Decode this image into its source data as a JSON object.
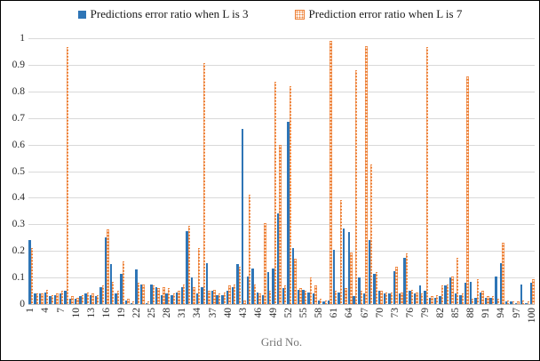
{
  "legend": {
    "position": "top",
    "items": [
      {
        "label": "Predictions error ratio when L is 3",
        "series": "l3"
      },
      {
        "label": "Prediction error ratio when L is 7",
        "series": "l7"
      }
    ]
  },
  "colors": {
    "l3_blue": "#2E75B6",
    "l7_orange": "#ED7D31",
    "gridline": "#D9D9D9",
    "axis_line": "#BFBFBF",
    "tick_text": "#262626",
    "axis_title_text": "#757575"
  },
  "axis": {
    "x_title": "Grid No.",
    "y_ticks": [
      "1",
      "0.9",
      "0.8",
      "0.7",
      "0.6",
      "0.5",
      "0.4",
      "0.3",
      "0.2",
      "0.1",
      "0"
    ],
    "x_tick_labels": [
      "1",
      "4",
      "7",
      "10",
      "13",
      "16",
      "19",
      "22",
      "25",
      "28",
      "31",
      "34",
      "37",
      "40",
      "43",
      "46",
      "49",
      "52",
      "55",
      "58",
      "61",
      "64",
      "67",
      "70",
      "73",
      "76",
      "79",
      "82",
      "85",
      "88",
      "91",
      "94",
      "97",
      "100"
    ],
    "x_tick_step": 3
  },
  "chart_data": {
    "type": "bar",
    "title": "",
    "xlabel": "Grid No.",
    "ylabel": "",
    "ylim": [
      0,
      1
    ],
    "grid": true,
    "legend_position": "top",
    "categories": [
      1,
      2,
      3,
      4,
      5,
      6,
      7,
      8,
      9,
      10,
      11,
      12,
      13,
      14,
      15,
      16,
      17,
      18,
      19,
      20,
      21,
      22,
      23,
      24,
      25,
      26,
      27,
      28,
      29,
      30,
      31,
      32,
      33,
      34,
      35,
      36,
      37,
      38,
      39,
      40,
      41,
      42,
      43,
      44,
      45,
      46,
      47,
      48,
      49,
      50,
      51,
      52,
      53,
      54,
      55,
      56,
      57,
      58,
      59,
      60,
      61,
      62,
      63,
      64,
      65,
      66,
      67,
      68,
      69,
      70,
      71,
      72,
      73,
      74,
      75,
      76,
      77,
      78,
      79,
      80,
      81,
      82,
      83,
      84,
      85,
      86,
      87,
      88,
      89,
      90,
      91,
      92,
      93,
      94,
      95,
      96,
      97,
      98,
      99,
      100
    ],
    "series": [
      {
        "name": "Predictions error ratio when L is 3",
        "color": "#2E75B6",
        "pattern": "solid",
        "values": [
          0.24,
          0.04,
          0.04,
          0.045,
          0.03,
          0.035,
          0.04,
          0.05,
          0.02,
          0.02,
          0.03,
          0.04,
          0.035,
          0.03,
          0.065,
          0.25,
          0.15,
          0.04,
          0.115,
          0.015,
          0.005,
          0.13,
          0.075,
          0.005,
          0.075,
          0.065,
          0.035,
          0.04,
          0.035,
          0.045,
          0.065,
          0.275,
          0.1,
          0.04,
          0.065,
          0.155,
          0.05,
          0.035,
          0.035,
          0.05,
          0.065,
          0.15,
          0.66,
          0.105,
          0.135,
          0.045,
          0.035,
          0.12,
          0.135,
          0.34,
          0.06,
          0.685,
          0.21,
          0.055,
          0.055,
          0.045,
          0.04,
          0.015,
          0.01,
          0.015,
          0.205,
          0.045,
          0.285,
          0.27,
          0.03,
          0.1,
          0.04,
          0.24,
          0.115,
          0.05,
          0.04,
          0.04,
          0.125,
          0.04,
          0.175,
          0.05,
          0.04,
          0.07,
          0.05,
          0.025,
          0.025,
          0.03,
          0.07,
          0.1,
          0.04,
          0.035,
          0.08,
          0.085,
          0.025,
          0.045,
          0.025,
          0.025,
          0.105,
          0.155,
          0.01,
          0.01,
          0.005,
          0.075,
          0.005,
          0.08
        ]
      },
      {
        "name": "Prediction error ratio when L is 7",
        "color": "#ED7D31",
        "pattern": "dotted",
        "values": [
          0.21,
          0.04,
          0.04,
          0.055,
          0.035,
          0.04,
          0.05,
          0.965,
          0.03,
          0.025,
          0.035,
          0.045,
          0.04,
          0.035,
          0.07,
          0.28,
          0.085,
          0.05,
          0.16,
          0.02,
          0.01,
          0.08,
          0.075,
          0.01,
          0.07,
          0.06,
          0.065,
          0.06,
          0.04,
          0.05,
          0.075,
          0.295,
          0.065,
          0.21,
          0.905,
          0.05,
          0.055,
          0.04,
          0.045,
          0.07,
          0.075,
          0.14,
          0.015,
          0.41,
          0.075,
          0.04,
          0.305,
          0.05,
          0.835,
          0.6,
          0.07,
          0.82,
          0.17,
          0.06,
          0.05,
          0.1,
          0.07,
          0.02,
          0.015,
          0.99,
          0.05,
          0.39,
          0.06,
          0.195,
          0.88,
          0.05,
          0.97,
          0.525,
          0.12,
          0.05,
          0.045,
          0.045,
          0.14,
          0.045,
          0.19,
          0.055,
          0.045,
          0.04,
          0.965,
          0.03,
          0.035,
          0.07,
          0.075,
          0.105,
          0.175,
          0.04,
          0.855,
          0.02,
          0.095,
          0.05,
          0.03,
          0.03,
          0.02,
          0.23,
          0.015,
          0.01,
          0.01,
          0.015,
          0.01,
          0.095
        ]
      }
    ]
  }
}
